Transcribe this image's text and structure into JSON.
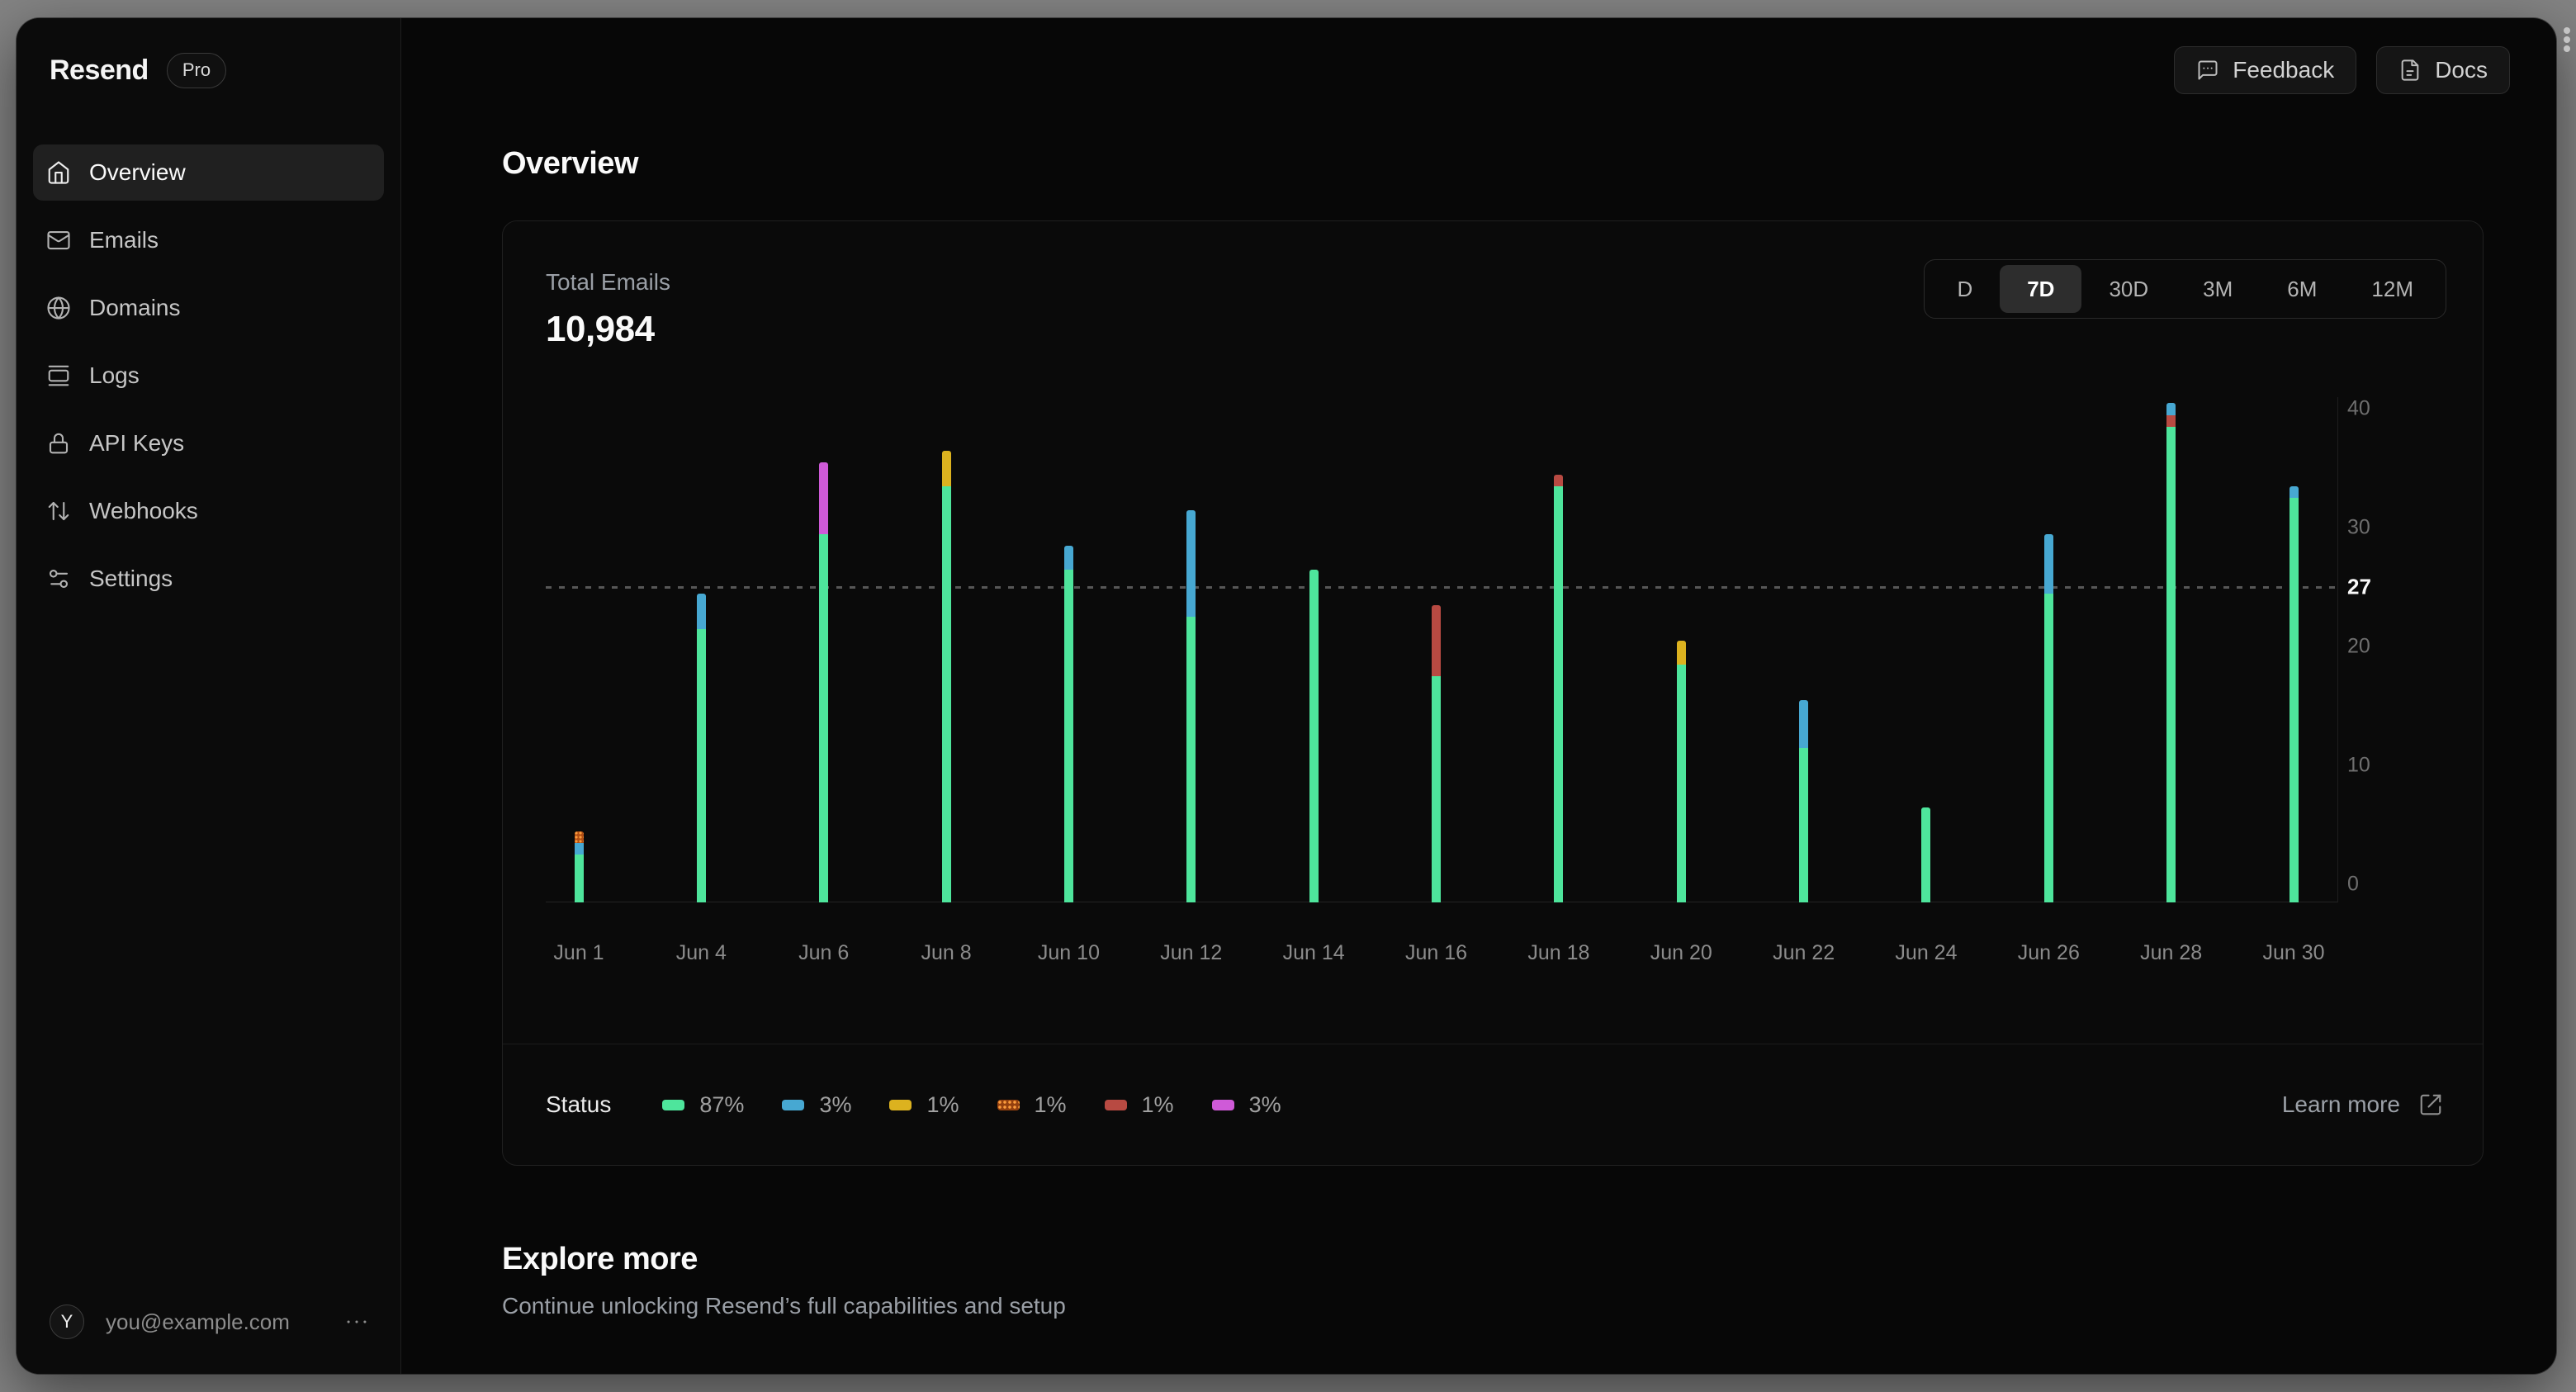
{
  "sidebar": {
    "brand": "Resend",
    "plan_badge": "Pro",
    "items": [
      {
        "label": "Overview",
        "icon": "home",
        "active": true
      },
      {
        "label": "Emails",
        "icon": "mail",
        "active": false
      },
      {
        "label": "Domains",
        "icon": "globe",
        "active": false
      },
      {
        "label": "Logs",
        "icon": "logs",
        "active": false
      },
      {
        "label": "API Keys",
        "icon": "lock",
        "active": false
      },
      {
        "label": "Webhooks",
        "icon": "arrows-up-down",
        "active": false
      },
      {
        "label": "Settings",
        "icon": "sliders",
        "active": false
      }
    ],
    "user": {
      "avatar_initial": "Y",
      "email": "you@example.com"
    }
  },
  "header": {
    "buttons": [
      {
        "label": "Feedback",
        "icon": "feedback-bubble"
      },
      {
        "label": "Docs",
        "icon": "document"
      }
    ]
  },
  "main": {
    "title": "Overview"
  },
  "card": {
    "metric_label": "Total Emails",
    "metric_value": "10,984",
    "ranges": [
      "D",
      "7D",
      "30D",
      "3M",
      "6M",
      "12M"
    ],
    "active_range": "7D",
    "footer": {
      "status_label": "Status",
      "legend": [
        {
          "color": "green",
          "label": "87%"
        },
        {
          "color": "blue",
          "label": "3%"
        },
        {
          "color": "yellow",
          "label": "1%"
        },
        {
          "color": "orange",
          "label": "1%"
        },
        {
          "color": "red",
          "label": "1%"
        },
        {
          "color": "magenta",
          "label": "3%"
        }
      ],
      "learn_more_label": "Learn more"
    }
  },
  "explore": {
    "title": "Explore more",
    "subtitle": "Continue unlocking Resend’s full capabilities and setup"
  },
  "chart_data": {
    "type": "bar",
    "stacked": true,
    "title": "Total Emails",
    "xlabel": "",
    "ylabel": "",
    "ylim": [
      0,
      40
    ],
    "yticks": [
      0,
      10,
      20,
      30,
      40
    ],
    "avg_line": {
      "label": "27",
      "value": 27
    },
    "grid": false,
    "legend_position": "bottom",
    "colors": {
      "green": "#4ee59c",
      "blue": "#47a8d2",
      "yellow": "#dcb21f",
      "orange": "#b14e14",
      "red": "#b84a42",
      "magenta": "#cf5ad8"
    },
    "categories": [
      "Jun 1",
      "Jun 4",
      "Jun 6",
      "Jun 8",
      "Jun 10",
      "Jun 12",
      "Jun 14",
      "Jun 16",
      "Jun 18",
      "Jun 20",
      "Jun 22",
      "Jun 24",
      "Jun 26",
      "Jun 28",
      "Jun 30"
    ],
    "bars": [
      {
        "date": "Jun 1",
        "segments": [
          [
            "green",
            4
          ],
          [
            "blue",
            1
          ],
          [
            "orange",
            1
          ]
        ]
      },
      {
        "date": "Jun 4",
        "segments": [
          [
            "green",
            23
          ],
          [
            "blue",
            3
          ]
        ]
      },
      {
        "date": "Jun 6",
        "segments": [
          [
            "green",
            31
          ],
          [
            "magenta",
            6
          ]
        ]
      },
      {
        "date": "Jun 8",
        "segments": [
          [
            "green",
            35
          ],
          [
            "yellow",
            3
          ]
        ]
      },
      {
        "date": "Jun 10",
        "segments": [
          [
            "green",
            28
          ],
          [
            "blue",
            2
          ]
        ]
      },
      {
        "date": "Jun 12",
        "segments": [
          [
            "green",
            24
          ],
          [
            "blue",
            9
          ]
        ]
      },
      {
        "date": "Jun 14",
        "segments": [
          [
            "green",
            28
          ]
        ]
      },
      {
        "date": "Jun 16",
        "segments": [
          [
            "green",
            19
          ],
          [
            "red",
            6
          ]
        ]
      },
      {
        "date": "Jun 18",
        "segments": [
          [
            "green",
            35
          ],
          [
            "red",
            1
          ]
        ]
      },
      {
        "date": "Jun 20",
        "segments": [
          [
            "green",
            20
          ],
          [
            "yellow",
            2
          ]
        ]
      },
      {
        "date": "Jun 22",
        "segments": [
          [
            "green",
            13
          ],
          [
            "blue",
            4
          ]
        ]
      },
      {
        "date": "Jun 24",
        "segments": [
          [
            "green",
            8
          ]
        ]
      },
      {
        "date": "Jun 26",
        "segments": [
          [
            "green",
            26
          ],
          [
            "blue",
            5
          ]
        ]
      },
      {
        "date": "Jun 28",
        "segments": [
          [
            "green",
            40
          ],
          [
            "red",
            1
          ],
          [
            "blue",
            1
          ]
        ]
      },
      {
        "date": "Jun 30",
        "segments": [
          [
            "green",
            34
          ],
          [
            "blue",
            1
          ]
        ]
      }
    ]
  }
}
